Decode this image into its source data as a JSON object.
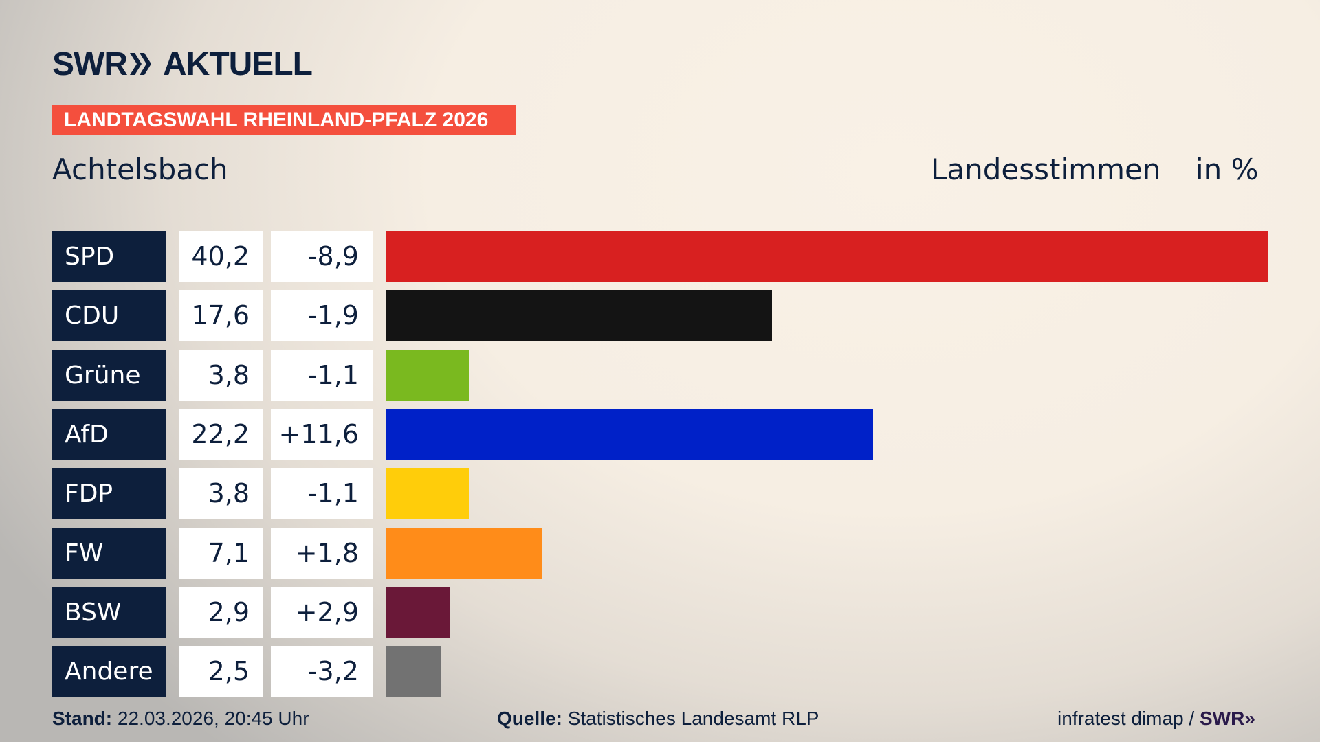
{
  "header": {
    "logo_text": "SWR",
    "logo_suffix": "AKTUELL",
    "banner": "LANDTAGSWAHL RHEINLAND-PFALZ 2026",
    "place": "Achtelsbach",
    "measure": "Landesstimmen",
    "unit": "in %"
  },
  "chart_data": {
    "type": "bar",
    "orientation": "horizontal",
    "categories": [
      "SPD",
      "CDU",
      "Grüne",
      "AfD",
      "FDP",
      "FW",
      "BSW",
      "Andere"
    ],
    "values": [
      40.2,
      17.6,
      3.8,
      22.2,
      3.8,
      7.1,
      2.9,
      2.5
    ],
    "value_labels": [
      "40,2",
      "17,6",
      "3,8",
      "22,2",
      "3,8",
      "7,1",
      "2,9",
      "2,5"
    ],
    "diff_labels": [
      "-8,9",
      "-1,9",
      "-1,1",
      "+11,6",
      "-1,1",
      "+1,8",
      "+2,9",
      "-3,2"
    ],
    "colors": [
      "#d82020",
      "#141414",
      "#7ab91f",
      "#0021c8",
      "#ffcd0a",
      "#ff8c19",
      "#6a1838",
      "#727272"
    ],
    "ylabel": "Landesstimmen",
    "unit": "in %"
  },
  "footer": {
    "stand_label": "Stand:",
    "stand_value": "22.03.2026, 20:45 Uhr",
    "source_label": "Quelle:",
    "source_value": "Statistisches Landesamt RLP",
    "credit": "infratest dimap /",
    "credit_logo": "SWR"
  }
}
